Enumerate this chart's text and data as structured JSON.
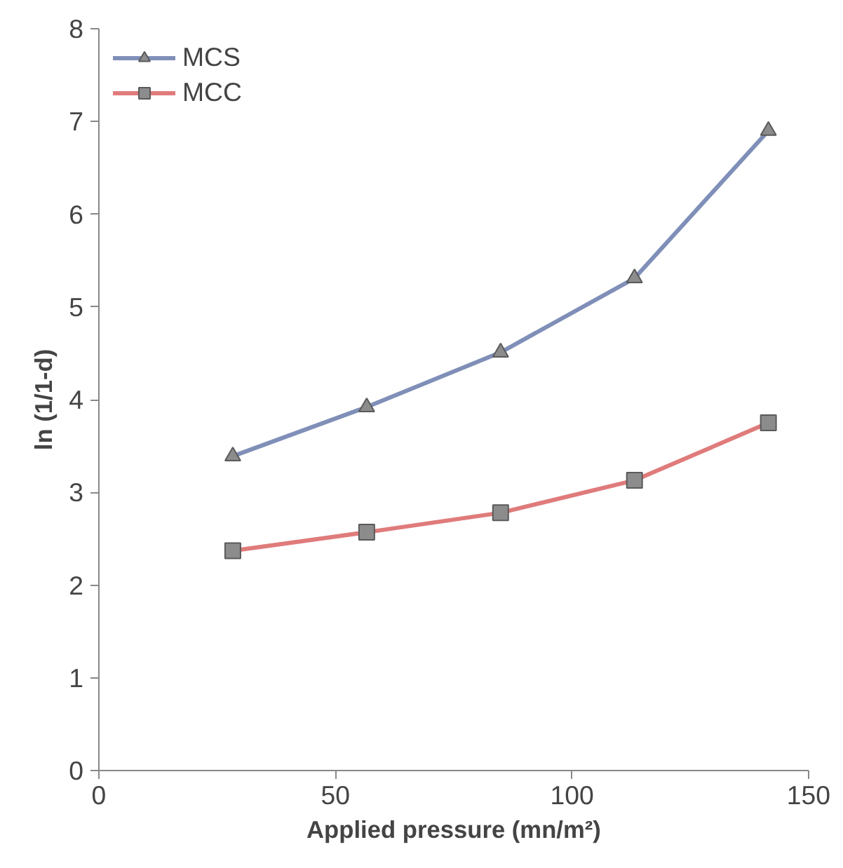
{
  "chart_data": {
    "type": "line",
    "xlabel": "Applied pressure (mn/m²)",
    "ylabel": "ln (1/1-d)",
    "xlim": [
      0,
      150
    ],
    "xticks": [
      0,
      50,
      100,
      150
    ],
    "ylim": [
      0,
      8
    ],
    "yticks": [
      0,
      1,
      2,
      3,
      4,
      5,
      6,
      7,
      8
    ],
    "grid": false,
    "legend": "top left",
    "line_style": "solid",
    "series": [
      {
        "name": "MCS",
        "color": "#7f8fb8",
        "marker": "triangle",
        "x": [
          28.3,
          56.6,
          84.9,
          113.2,
          141.5
        ],
        "values": [
          3.39,
          3.92,
          4.51,
          5.31,
          6.9
        ]
      },
      {
        "name": "MCC",
        "color": "#e07b7b",
        "marker": "square",
        "x": [
          28.3,
          56.6,
          84.9,
          113.2,
          141.5
        ],
        "values": [
          2.37,
          2.57,
          2.78,
          3.13,
          3.75
        ]
      }
    ]
  }
}
